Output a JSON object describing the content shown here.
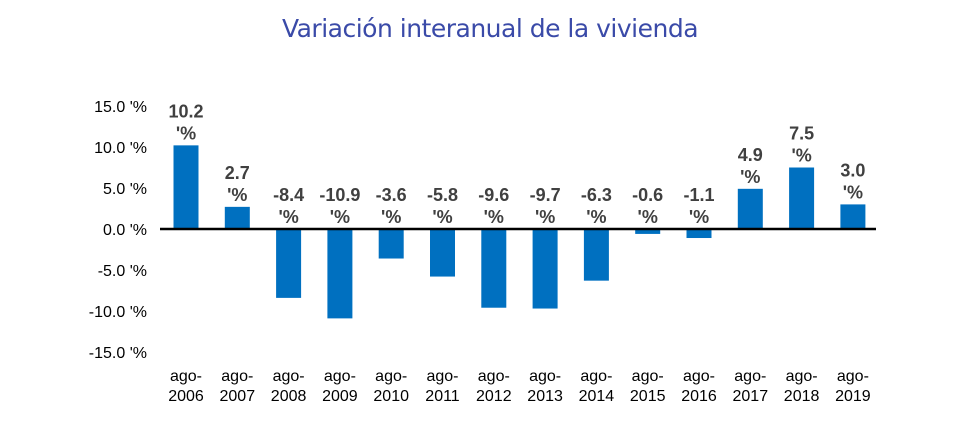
{
  "chart_data": {
    "type": "bar",
    "title": "Variación interanual de la vivienda",
    "categories": [
      [
        "ago-",
        "2006"
      ],
      [
        "ago-",
        "2007"
      ],
      [
        "ago-",
        "2008"
      ],
      [
        "ago-",
        "2009"
      ],
      [
        "ago-",
        "2010"
      ],
      [
        "ago-",
        "2011"
      ],
      [
        "ago-",
        "2012"
      ],
      [
        "ago-",
        "2013"
      ],
      [
        "ago-",
        "2014"
      ],
      [
        "ago-",
        "2015"
      ],
      [
        "ago-",
        "2016"
      ],
      [
        "ago-",
        "2017"
      ],
      [
        "ago-",
        "2018"
      ],
      [
        "ago-",
        "2019"
      ]
    ],
    "values": [
      10.2,
      2.7,
      -8.4,
      -10.9,
      -3.6,
      -5.8,
      -9.6,
      -9.7,
      -6.3,
      -0.6,
      -1.1,
      4.9,
      7.5,
      3.0
    ],
    "data_labels": [
      [
        "10.2",
        "'%"
      ],
      [
        "2.7",
        "'%"
      ],
      [
        "-8.4",
        "'%"
      ],
      [
        "-10.9",
        "'%"
      ],
      [
        "-3.6",
        "'%"
      ],
      [
        "-5.8",
        "'%"
      ],
      [
        "-9.6",
        "'%"
      ],
      [
        "-9.7",
        "'%"
      ],
      [
        "-6.3",
        "'%"
      ],
      [
        "-0.6",
        "'%"
      ],
      [
        "-1.1",
        "'%"
      ],
      [
        "4.9",
        "'%"
      ],
      [
        "7.5",
        "'%"
      ],
      [
        "3.0",
        "'%"
      ]
    ],
    "yticks": [
      15,
      10,
      5,
      0,
      -5,
      -10,
      -15
    ],
    "ytick_labels": [
      "15.0 '%",
      "10.0 '%",
      "5.0 '%",
      "0.0 '%",
      "-5.0 '%",
      "-10.0 '%",
      "-15.0 '%"
    ],
    "ylim": [
      -15,
      15
    ],
    "grid": false,
    "bar_color": "#0070c0",
    "axis_color": "#000000",
    "label_color": "#404040",
    "title_color": "#3a4aa8"
  }
}
